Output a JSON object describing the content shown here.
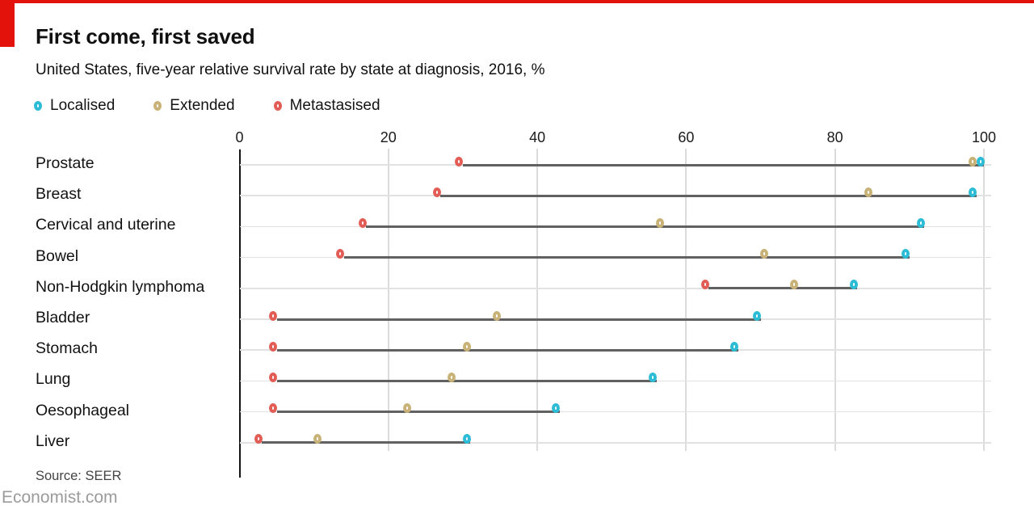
{
  "header": {
    "title": "First come, first saved",
    "subtitle": "United States, five-year relative survival rate by state at diagnosis, 2016, %"
  },
  "source": "Source: SEER",
  "footer_brand": "Economist.com",
  "colors": {
    "accent_red": "#E3120B",
    "localised": "#2DBCD6",
    "extended": "#C9B277",
    "metastasised": "#E25D55",
    "connector": "#616161",
    "gridline": "#DCDCDC",
    "axis_line": "#141414"
  },
  "chart_data": {
    "type": "scatter",
    "subtype": "dot-plot-dumbbell",
    "title": "First come, first saved",
    "subtitle": "United States, five-year relative survival rate by state at diagnosis, 2016, %",
    "xlabel": "",
    "ylabel": "",
    "xlim": [
      0,
      100
    ],
    "xticks": [
      0,
      20,
      40,
      60,
      80,
      100
    ],
    "grid": "vertical-on",
    "legend_position": "top-left",
    "categories": [
      "Prostate",
      "Breast",
      "Cervical and uterine",
      "Bowel",
      "Non-Hodgkin lymphoma",
      "Bladder",
      "Stomach",
      "Lung",
      "Oesophageal",
      "Liver"
    ],
    "series": [
      {
        "name": "Localised",
        "color": "#2DBCD6",
        "values": [
          100,
          99,
          92,
          90,
          83,
          70,
          67,
          56,
          43,
          31
        ]
      },
      {
        "name": "Extended",
        "color": "#C9B277",
        "values": [
          99,
          85,
          57,
          71,
          75,
          35,
          31,
          29,
          23,
          11
        ]
      },
      {
        "name": "Metastasised",
        "color": "#E25D55",
        "values": [
          30,
          27,
          17,
          14,
          63,
          5,
          5,
          5,
          5,
          3
        ]
      }
    ]
  }
}
